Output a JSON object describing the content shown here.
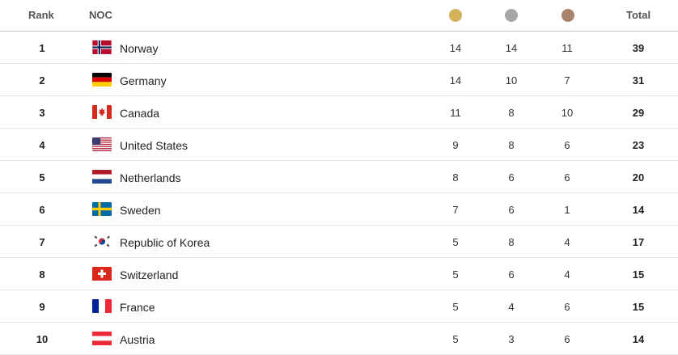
{
  "header": {
    "rank": "Rank",
    "noc": "NOC",
    "total": "Total",
    "medal_icons": [
      {
        "name": "gold-medal-icon",
        "color": "#d4b25a"
      },
      {
        "name": "silver-medal-icon",
        "color": "#a7a7a7"
      },
      {
        "name": "bronze-medal-icon",
        "color": "#a8826a"
      }
    ]
  },
  "rows": [
    {
      "rank": "1",
      "country": "Norway",
      "flag": "norway-flag-icon",
      "gold": "14",
      "silver": "14",
      "bronze": "11",
      "total": "39"
    },
    {
      "rank": "2",
      "country": "Germany",
      "flag": "germany-flag-icon",
      "gold": "14",
      "silver": "10",
      "bronze": "7",
      "total": "31"
    },
    {
      "rank": "3",
      "country": "Canada",
      "flag": "canada-flag-icon",
      "gold": "11",
      "silver": "8",
      "bronze": "10",
      "total": "29"
    },
    {
      "rank": "4",
      "country": "United States",
      "flag": "united-states-flag-icon",
      "gold": "9",
      "silver": "8",
      "bronze": "6",
      "total": "23"
    },
    {
      "rank": "5",
      "country": "Netherlands",
      "flag": "netherlands-flag-icon",
      "gold": "8",
      "silver": "6",
      "bronze": "6",
      "total": "20"
    },
    {
      "rank": "6",
      "country": "Sweden",
      "flag": "sweden-flag-icon",
      "gold": "7",
      "silver": "6",
      "bronze": "1",
      "total": "14"
    },
    {
      "rank": "7",
      "country": "Republic of Korea",
      "flag": "korea-flag-icon",
      "gold": "5",
      "silver": "8",
      "bronze": "4",
      "total": "17"
    },
    {
      "rank": "8",
      "country": "Switzerland",
      "flag": "switzerland-flag-icon",
      "gold": "5",
      "silver": "6",
      "bronze": "4",
      "total": "15"
    },
    {
      "rank": "9",
      "country": "France",
      "flag": "france-flag-icon",
      "gold": "5",
      "silver": "4",
      "bronze": "6",
      "total": "15"
    },
    {
      "rank": "10",
      "country": "Austria",
      "flag": "austria-flag-icon",
      "gold": "5",
      "silver": "3",
      "bronze": "6",
      "total": "14"
    }
  ]
}
